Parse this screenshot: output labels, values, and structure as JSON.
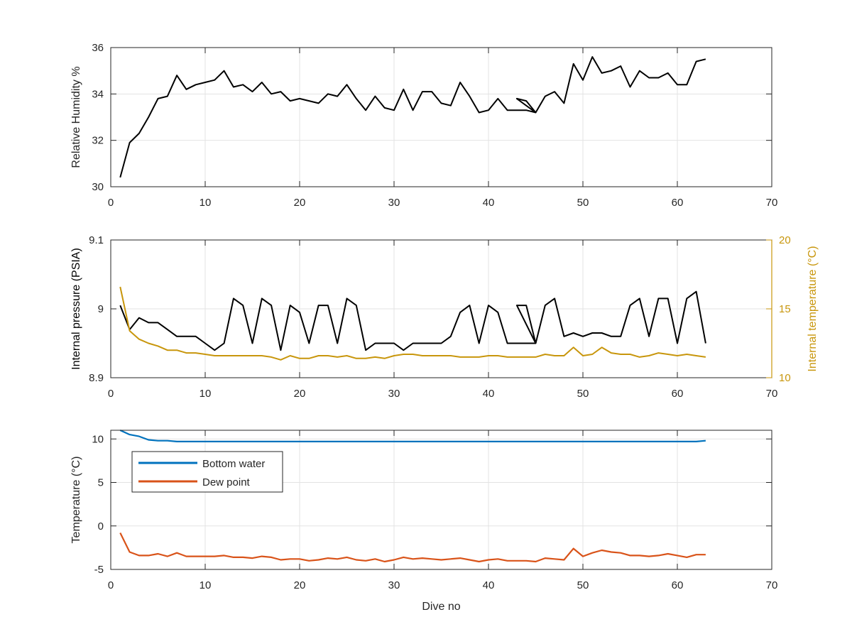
{
  "chart_data": [
    {
      "type": "line",
      "title": "",
      "xlabel": "",
      "ylabel": "Relative Humidity %",
      "xlim": [
        0,
        70
      ],
      "ylim": [
        30,
        36
      ],
      "xticks": [
        0,
        10,
        20,
        30,
        40,
        50,
        60,
        70
      ],
      "yticks": [
        30,
        32,
        34,
        36
      ],
      "grid": true,
      "series": [
        {
          "color": "#000000",
          "x": [
            1,
            2,
            3,
            4,
            5,
            6,
            7,
            8,
            9,
            10,
            11,
            12,
            13,
            14,
            15,
            16,
            17,
            18,
            19,
            20,
            21,
            22,
            23,
            24,
            25,
            26,
            27,
            28,
            29,
            30,
            31,
            32,
            33,
            34,
            35,
            36,
            37,
            38,
            39,
            40,
            41,
            42,
            43,
            44,
            45,
            43,
            44,
            45,
            46,
            47,
            48,
            49,
            50,
            51,
            52,
            53,
            54,
            55,
            56,
            57,
            58,
            59,
            60,
            61,
            62,
            63
          ],
          "y": [
            30.4,
            31.9,
            32.3,
            33.0,
            33.8,
            33.9,
            34.8,
            34.2,
            34.4,
            34.5,
            34.6,
            35.0,
            34.3,
            34.4,
            34.1,
            34.5,
            34.0,
            34.1,
            33.7,
            33.8,
            33.7,
            33.6,
            34.0,
            33.9,
            34.4,
            33.8,
            33.3,
            33.9,
            33.4,
            33.3,
            34.2,
            33.3,
            34.1,
            34.1,
            33.6,
            33.5,
            34.5,
            33.9,
            33.2,
            33.3,
            33.8,
            33.3,
            33.3,
            33.3,
            33.2,
            33.8,
            33.7,
            33.2,
            33.9,
            34.1,
            33.6,
            35.3,
            34.6,
            35.6,
            34.9,
            35.0,
            35.2,
            34.3,
            35.0,
            34.7,
            34.7,
            34.9,
            34.4,
            34.4,
            35.4,
            35.5
          ]
        }
      ]
    },
    {
      "type": "line",
      "title": "",
      "xlabel": "",
      "ylabel": "Internal pressure (PSIA)",
      "ylabel_right": "Internal temperature (°C)",
      "xlim": [
        0,
        70
      ],
      "ylim": [
        8.9,
        9.1
      ],
      "ylim_right": [
        10,
        20
      ],
      "xticks": [
        0,
        10,
        20,
        30,
        40,
        50,
        60,
        70
      ],
      "yticks": [
        "8.9",
        "9",
        "9.1"
      ],
      "yticks_right": [
        10,
        15,
        20
      ],
      "grid": true,
      "series": [
        {
          "axis": "left",
          "color": "#000000",
          "x": [
            1,
            2,
            3,
            4,
            5,
            6,
            7,
            8,
            9,
            10,
            11,
            12,
            13,
            14,
            15,
            16,
            17,
            18,
            19,
            20,
            21,
            22,
            23,
            24,
            25,
            26,
            27,
            28,
            29,
            30,
            31,
            32,
            33,
            34,
            35,
            36,
            37,
            38,
            39,
            40,
            41,
            42,
            43,
            44,
            45,
            43,
            44,
            45,
            46,
            47,
            48,
            49,
            50,
            51,
            52,
            53,
            54,
            55,
            56,
            57,
            58,
            59,
            60,
            61,
            62,
            63
          ],
          "y": [
            9.005,
            8.97,
            8.987,
            8.98,
            8.98,
            8.97,
            8.96,
            8.96,
            8.96,
            8.95,
            8.94,
            8.95,
            9.015,
            9.005,
            8.95,
            9.015,
            9.005,
            8.94,
            9.005,
            8.995,
            8.95,
            9.005,
            9.005,
            8.95,
            9.015,
            9.005,
            8.94,
            8.95,
            8.95,
            8.95,
            8.94,
            8.95,
            8.95,
            8.95,
            8.95,
            8.96,
            8.995,
            9.005,
            8.95,
            9.005,
            8.995,
            8.95,
            8.95,
            8.95,
            8.95,
            9.005,
            9.005,
            8.95,
            9.005,
            9.015,
            8.96,
            8.965,
            8.96,
            8.965,
            8.965,
            8.96,
            8.96,
            9.005,
            9.015,
            8.96,
            9.015,
            9.015,
            8.95,
            9.015,
            9.025,
            8.95
          ]
        },
        {
          "axis": "right",
          "color": "#c8960c",
          "x": [
            1,
            2,
            3,
            4,
            5,
            6,
            7,
            8,
            9,
            10,
            11,
            12,
            13,
            14,
            15,
            16,
            17,
            18,
            19,
            20,
            21,
            22,
            23,
            24,
            25,
            26,
            27,
            28,
            29,
            30,
            31,
            32,
            33,
            34,
            35,
            36,
            37,
            38,
            39,
            40,
            41,
            42,
            43,
            44,
            45,
            46,
            47,
            48,
            49,
            50,
            51,
            52,
            53,
            54,
            55,
            56,
            57,
            58,
            59,
            60,
            61,
            62,
            63
          ],
          "y": [
            16.6,
            13.4,
            12.8,
            12.5,
            12.3,
            12.0,
            12.0,
            11.8,
            11.8,
            11.7,
            11.6,
            11.6,
            11.6,
            11.6,
            11.6,
            11.6,
            11.5,
            11.3,
            11.6,
            11.4,
            11.4,
            11.6,
            11.6,
            11.5,
            11.6,
            11.4,
            11.4,
            11.5,
            11.4,
            11.6,
            11.7,
            11.7,
            11.6,
            11.6,
            11.6,
            11.6,
            11.5,
            11.5,
            11.5,
            11.6,
            11.6,
            11.5,
            11.5,
            11.5,
            11.5,
            11.7,
            11.6,
            11.6,
            12.2,
            11.6,
            11.7,
            12.2,
            11.8,
            11.7,
            11.7,
            11.5,
            11.6,
            11.8,
            11.7,
            11.6,
            11.7,
            11.6,
            11.5
          ]
        }
      ]
    },
    {
      "type": "line",
      "title": "",
      "xlabel": "Dive no",
      "ylabel": "Temperature (°C)",
      "xlim": [
        0,
        70
      ],
      "ylim": [
        -5,
        11
      ],
      "xticks": [
        0,
        10,
        20,
        30,
        40,
        50,
        60,
        70
      ],
      "yticks": [
        -5,
        0,
        5,
        10
      ],
      "grid": true,
      "legend": "top-left",
      "series": [
        {
          "name": "Bottom water",
          "color": "#0072bd",
          "x": [
            1,
            2,
            3,
            4,
            5,
            6,
            7,
            8,
            9,
            10,
            11,
            12,
            13,
            14,
            15,
            16,
            17,
            18,
            19,
            20,
            21,
            22,
            23,
            24,
            25,
            26,
            27,
            28,
            29,
            30,
            31,
            32,
            33,
            34,
            35,
            36,
            37,
            38,
            39,
            40,
            41,
            42,
            43,
            44,
            45,
            46,
            47,
            48,
            49,
            50,
            51,
            52,
            53,
            54,
            55,
            56,
            57,
            58,
            59,
            60,
            61,
            62,
            63
          ],
          "y": [
            11.0,
            10.5,
            10.3,
            9.9,
            9.8,
            9.8,
            9.7,
            9.7,
            9.7,
            9.7,
            9.7,
            9.7,
            9.7,
            9.7,
            9.7,
            9.7,
            9.7,
            9.7,
            9.7,
            9.7,
            9.7,
            9.7,
            9.7,
            9.7,
            9.7,
            9.7,
            9.7,
            9.7,
            9.7,
            9.7,
            9.7,
            9.7,
            9.7,
            9.7,
            9.7,
            9.7,
            9.7,
            9.7,
            9.7,
            9.7,
            9.7,
            9.7,
            9.7,
            9.7,
            9.7,
            9.7,
            9.7,
            9.7,
            9.7,
            9.7,
            9.7,
            9.7,
            9.7,
            9.7,
            9.7,
            9.7,
            9.7,
            9.7,
            9.7,
            9.7,
            9.7,
            9.7,
            9.8
          ]
        },
        {
          "name": "Dew point",
          "color": "#d95319",
          "x": [
            1,
            2,
            3,
            4,
            5,
            6,
            7,
            8,
            9,
            10,
            11,
            12,
            13,
            14,
            15,
            16,
            17,
            18,
            19,
            20,
            21,
            22,
            23,
            24,
            25,
            26,
            27,
            28,
            29,
            30,
            31,
            32,
            33,
            34,
            35,
            36,
            37,
            38,
            39,
            40,
            41,
            42,
            43,
            44,
            45,
            46,
            47,
            48,
            49,
            50,
            51,
            52,
            53,
            54,
            55,
            56,
            57,
            58,
            59,
            60,
            61,
            62,
            63
          ],
          "y": [
            -0.8,
            -3.0,
            -3.4,
            -3.4,
            -3.2,
            -3.5,
            -3.1,
            -3.5,
            -3.5,
            -3.5,
            -3.5,
            -3.4,
            -3.6,
            -3.6,
            -3.7,
            -3.5,
            -3.6,
            -3.9,
            -3.8,
            -3.8,
            -4.0,
            -3.9,
            -3.7,
            -3.8,
            -3.6,
            -3.9,
            -4.0,
            -3.8,
            -4.1,
            -3.9,
            -3.6,
            -3.8,
            -3.7,
            -3.8,
            -3.9,
            -3.8,
            -3.7,
            -3.9,
            -4.1,
            -3.9,
            -3.8,
            -4.0,
            -4.0,
            -4.0,
            -4.1,
            -3.7,
            -3.8,
            -3.9,
            -2.6,
            -3.5,
            -3.1,
            -2.8,
            -3.0,
            -3.1,
            -3.4,
            -3.4,
            -3.5,
            -3.4,
            -3.2,
            -3.4,
            -3.6,
            -3.3,
            -3.3
          ]
        }
      ]
    }
  ]
}
